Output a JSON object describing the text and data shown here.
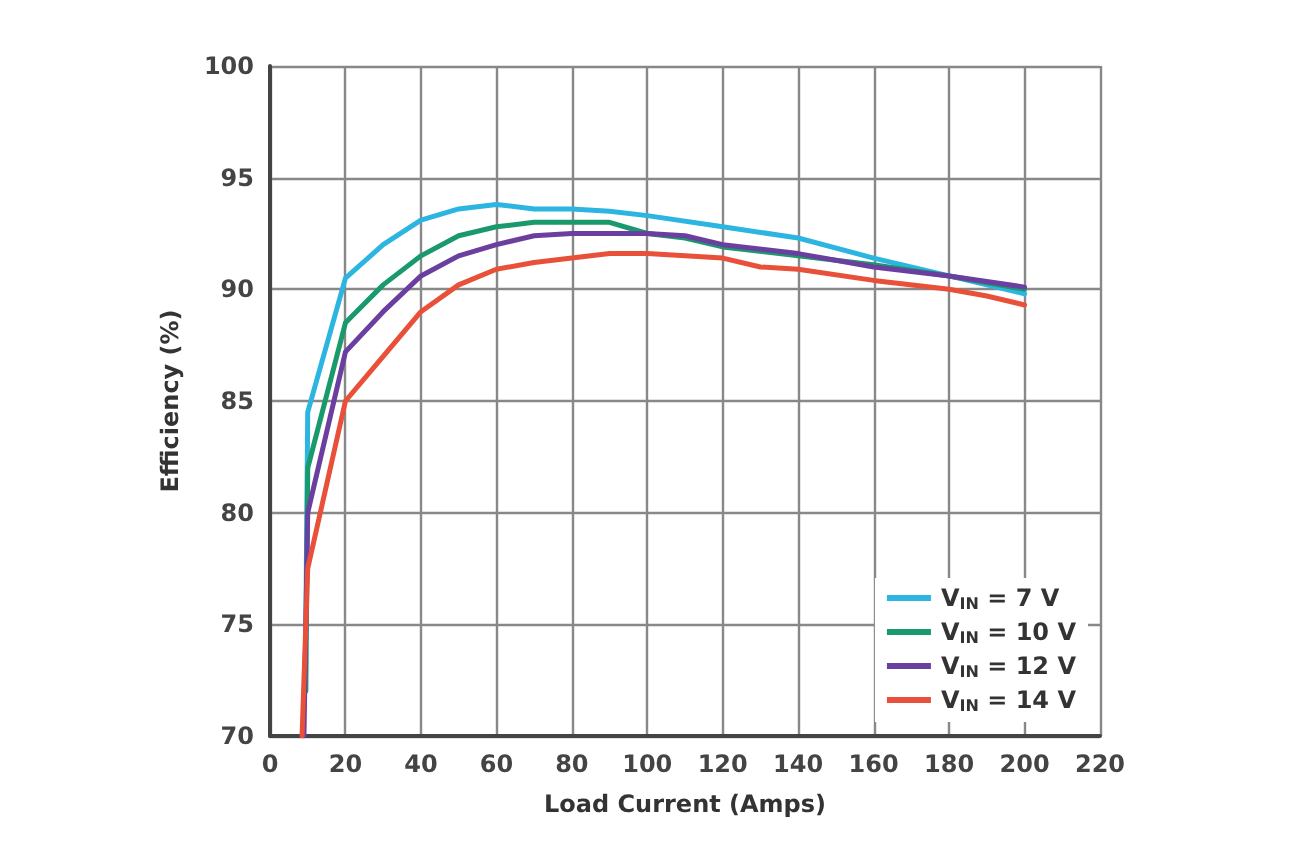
{
  "chart_data": {
    "type": "line",
    "xlabel": "Load Current (Amps)",
    "ylabel": "Efficiency (%)",
    "xlim": [
      0,
      220
    ],
    "xticks": [
      0,
      20,
      40,
      60,
      80,
      100,
      120,
      140,
      160,
      180,
      200,
      220
    ],
    "ylim": [
      70,
      100
    ],
    "yticks": [
      70,
      75,
      80,
      85,
      90,
      95,
      100
    ],
    "grid": true,
    "legend": "bottom right",
    "marker": "none",
    "line_style": "solid",
    "series": [
      {
        "name": "V$_{IN}$ = 7 V",
        "color": "#2bb5e0",
        "x": [
          9.5,
          10,
          20,
          30,
          40,
          50,
          60,
          70,
          80,
          90,
          100,
          120,
          140,
          160,
          180,
          200
        ],
        "values": [
          75,
          84.5,
          90.5,
          92,
          93.1,
          93.6,
          93.8,
          93.6,
          93.6,
          93.5,
          93.3,
          92.8,
          92.3,
          91.4,
          90.6,
          89.8
        ]
      },
      {
        "name": "V$_{IN}$ = 10 V",
        "color": "#1a9a6c",
        "x": [
          9.5,
          10,
          20,
          30,
          40,
          50,
          60,
          70,
          80,
          90,
          100,
          110,
          120,
          140,
          160,
          180,
          200
        ],
        "values": [
          72,
          82,
          88.5,
          90.2,
          91.5,
          92.4,
          92.8,
          93,
          93,
          93,
          92.5,
          92.3,
          91.9,
          91.5,
          91.1,
          90.6,
          90
        ]
      },
      {
        "name": "V$_{IN}$ = 12 V",
        "color": "#6b3fa0",
        "x": [
          9,
          10,
          20,
          30,
          40,
          50,
          60,
          70,
          80,
          90,
          100,
          110,
          120,
          140,
          160,
          180,
          200
        ],
        "values": [
          70,
          80,
          87.2,
          89,
          90.6,
          91.5,
          92,
          92.4,
          92.5,
          92.5,
          92.5,
          92.4,
          92,
          91.6,
          91,
          90.6,
          90.1
        ]
      },
      {
        "name": "V$_{IN}$ = 14 V",
        "color": "#e8503a",
        "x": [
          8.5,
          10,
          20,
          30,
          40,
          50,
          60,
          70,
          80,
          90,
          100,
          110,
          120,
          130,
          140,
          160,
          180,
          190,
          200
        ],
        "values": [
          70,
          77.5,
          85,
          87,
          89,
          90.2,
          90.9,
          91.2,
          91.4,
          91.6,
          91.6,
          91.5,
          91.4,
          91,
          90.9,
          90.4,
          90,
          89.7,
          89.3
        ]
      }
    ]
  }
}
